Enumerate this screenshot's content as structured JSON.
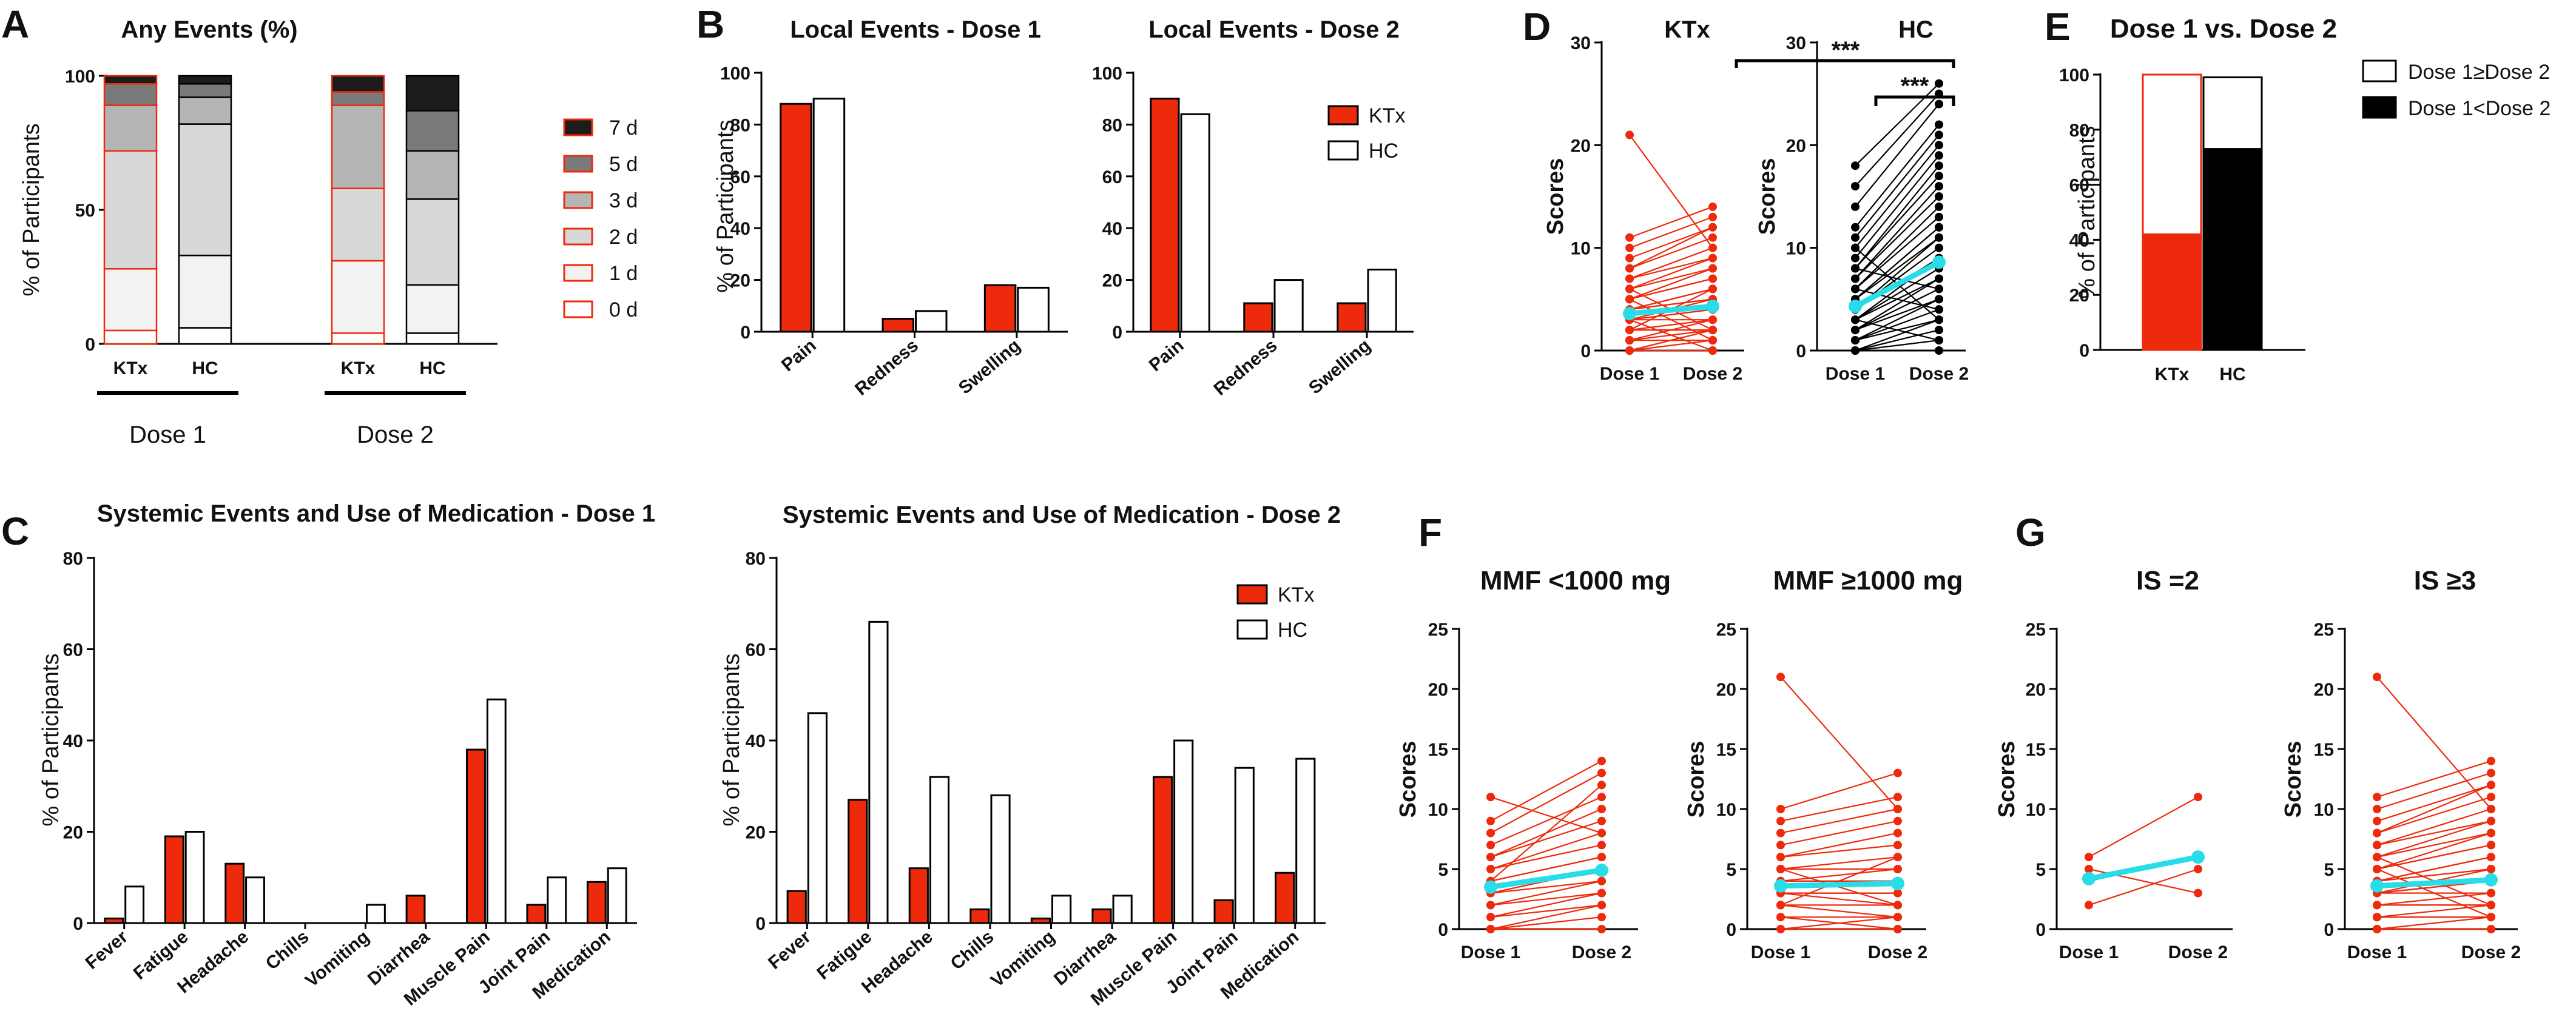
{
  "panel_labels": {
    "A": "A",
    "B": "B",
    "C": "C",
    "D": "D",
    "E": "E",
    "F": "F",
    "G": "G"
  },
  "colors": {
    "ktx": "#ee2a0c",
    "hc": "#ffffff",
    "black": "#000000",
    "cyan": "#29dde8"
  },
  "chart_data": [
    {
      "id": "A",
      "type": "bar",
      "stacked": true,
      "title": "Any Events (%)",
      "ylabel": "% of Participants",
      "ylim": [
        0,
        100
      ],
      "yticks": [
        0,
        50,
        100
      ],
      "categories": [
        "KTx",
        "HC",
        "KTx",
        "HC"
      ],
      "groups": [
        "Dose 1",
        "Dose 2"
      ],
      "legend": [
        "7 d",
        "5 d",
        "3 d",
        "2 d",
        "1 d",
        "0 d"
      ],
      "series_fills": [
        "#1c1c1c",
        "#7a7a7a",
        "#b5b5b5",
        "#d8d8d8",
        "#f2f2f2",
        "#ffffff"
      ],
      "cumulative_tops": [
        [
          5,
          28,
          72,
          89,
          97,
          100
        ],
        [
          6,
          33,
          82,
          92,
          97,
          100
        ],
        [
          4,
          31,
          58,
          89,
          94,
          100
        ],
        [
          4,
          22,
          54,
          72,
          87,
          100
        ]
      ],
      "edge_colors": [
        "#ee2a0c",
        "#000000",
        "#ee2a0c",
        "#000000"
      ]
    },
    {
      "id": "B1",
      "type": "bar",
      "title": "Local Events - Dose 1",
      "ylabel": "% of Participants",
      "ylim": [
        0,
        100
      ],
      "yticks": [
        0,
        20,
        40,
        60,
        80,
        100
      ],
      "categories": [
        "Pain",
        "Redness",
        "Swelling"
      ],
      "series": [
        {
          "name": "KTx",
          "values": [
            88,
            5,
            18
          ]
        },
        {
          "name": "HC",
          "values": [
            90,
            8,
            17
          ]
        }
      ]
    },
    {
      "id": "B2",
      "type": "bar",
      "title": "Local Events - Dose 2",
      "ylabel": "",
      "ylim": [
        0,
        100
      ],
      "yticks": [
        0,
        20,
        40,
        60,
        80,
        100
      ],
      "categories": [
        "Pain",
        "Redness",
        "Swelling"
      ],
      "series": [
        {
          "name": "KTx",
          "values": [
            90,
            11,
            11
          ]
        },
        {
          "name": "HC",
          "values": [
            84,
            20,
            24
          ]
        }
      ],
      "legend": [
        "KTx",
        "HC"
      ]
    },
    {
      "id": "C1",
      "type": "bar",
      "title": "Systemic Events and Use of Medication - Dose 1",
      "ylabel": "% of Participants",
      "ylim": [
        0,
        80
      ],
      "yticks": [
        0,
        20,
        40,
        60,
        80
      ],
      "categories": [
        "Fever",
        "Fatigue",
        "Headache",
        "Chills",
        "Vomiting",
        "Diarrhea",
        "Muscle Pain",
        "Joint Pain",
        "Medication"
      ],
      "series": [
        {
          "name": "KTx",
          "values": [
            1,
            19,
            13,
            0,
            0,
            6,
            38,
            4,
            9
          ]
        },
        {
          "name": "HC",
          "values": [
            8,
            20,
            10,
            0,
            4,
            0,
            49,
            10,
            12
          ]
        }
      ]
    },
    {
      "id": "C2",
      "type": "bar",
      "title": "Systemic Events and Use of Medication - Dose 2",
      "ylabel": "% of Participants",
      "ylim": [
        0,
        80
      ],
      "yticks": [
        0,
        20,
        40,
        60,
        80
      ],
      "categories": [
        "Fever",
        "Fatigue",
        "Headache",
        "Chills",
        "Vomiting",
        "Diarrhea",
        "Muscle Pain",
        "Joint Pain",
        "Medication"
      ],
      "series": [
        {
          "name": "KTx",
          "values": [
            7,
            27,
            12,
            3,
            1,
            3,
            32,
            5,
            11
          ]
        },
        {
          "name": "HC",
          "values": [
            46,
            66,
            32,
            28,
            6,
            6,
            40,
            34,
            36
          ]
        }
      ],
      "legend": [
        "KTx",
        "HC"
      ]
    },
    {
      "id": "D1",
      "type": "scatter",
      "title": "KTx",
      "ylabel": "Scores",
      "ylim": [
        0,
        30
      ],
      "yticks": [
        0,
        10,
        20,
        30
      ],
      "x": [
        "Dose 1",
        "Dose 2"
      ],
      "color": "ktx",
      "pairs": [
        [
          21,
          10
        ],
        [
          11,
          14
        ],
        [
          10,
          13
        ],
        [
          9,
          12
        ],
        [
          8,
          12
        ],
        [
          8,
          11
        ],
        [
          7,
          10
        ],
        [
          7,
          9
        ],
        [
          6,
          9
        ],
        [
          6,
          8
        ],
        [
          5,
          8
        ],
        [
          5,
          7
        ],
        [
          5,
          7
        ],
        [
          4,
          6
        ],
        [
          4,
          6
        ],
        [
          4,
          5
        ],
        [
          4,
          5
        ],
        [
          3,
          5
        ],
        [
          3,
          4
        ],
        [
          3,
          4
        ],
        [
          3,
          3
        ],
        [
          2,
          3
        ],
        [
          2,
          2
        ],
        [
          2,
          2
        ],
        [
          1,
          2
        ],
        [
          1,
          1
        ],
        [
          1,
          1
        ],
        [
          0,
          1
        ],
        [
          0,
          0
        ],
        [
          0,
          0
        ],
        [
          6,
          2
        ],
        [
          5,
          1
        ],
        [
          3,
          0
        ],
        [
          2,
          6
        ],
        [
          1,
          3
        ],
        [
          0,
          2
        ]
      ],
      "mean": [
        3.6,
        4.3
      ]
    },
    {
      "id": "D2",
      "type": "scatter",
      "title": "HC",
      "ylabel": "Scores",
      "ylim": [
        0,
        30
      ],
      "yticks": [
        0,
        10,
        20,
        30
      ],
      "x": [
        "Dose 1",
        "Dose 2"
      ],
      "color": "black",
      "pairs": [
        [
          18,
          26
        ],
        [
          16,
          25
        ],
        [
          14,
          24
        ],
        [
          12,
          22
        ],
        [
          11,
          21
        ],
        [
          10,
          20
        ],
        [
          9,
          19
        ],
        [
          8,
          18
        ],
        [
          8,
          17
        ],
        [
          7,
          16
        ],
        [
          7,
          15
        ],
        [
          6,
          14
        ],
        [
          6,
          13
        ],
        [
          5,
          12
        ],
        [
          5,
          12
        ],
        [
          5,
          11
        ],
        [
          4,
          11
        ],
        [
          4,
          10
        ],
        [
          4,
          9
        ],
        [
          3,
          9
        ],
        [
          3,
          8
        ],
        [
          3,
          7
        ],
        [
          2,
          7
        ],
        [
          2,
          6
        ],
        [
          2,
          5
        ],
        [
          1,
          5
        ],
        [
          1,
          4
        ],
        [
          1,
          3
        ],
        [
          0,
          3
        ],
        [
          0,
          2
        ],
        [
          0,
          1
        ],
        [
          0,
          0
        ],
        [
          6,
          4
        ],
        [
          10,
          3
        ],
        [
          3,
          1
        ],
        [
          8,
          6
        ]
      ],
      "mean": [
        4.3,
        8.6
      ],
      "significance": [
        {
          "label": "***",
          "between": "Dose 1 vs Dose 2"
        },
        {
          "label": "***",
          "between": "KTx vs HC"
        }
      ]
    },
    {
      "id": "E",
      "type": "bar",
      "stacked": true,
      "title": "Dose 1 vs. Dose 2",
      "ylabel": "% of Participants",
      "ylim": [
        0,
        100
      ],
      "yticks": [
        0,
        20,
        40,
        60,
        80,
        100
      ],
      "categories": [
        "KTx",
        "HC"
      ],
      "series": [
        {
          "name": "Dose 1<Dose 2",
          "values": [
            42,
            73
          ]
        },
        {
          "name": "Dose 1≥Dose 2",
          "values": [
            58,
            26
          ]
        }
      ],
      "legend": [
        "Dose 1≥Dose 2",
        "Dose 1<Dose 2"
      ]
    },
    {
      "id": "F1",
      "type": "scatter",
      "title": "MMF <1000 mg",
      "ylabel": "Scores",
      "ylim": [
        0,
        25
      ],
      "yticks": [
        0,
        5,
        10,
        15,
        20,
        25
      ],
      "x": [
        "Dose 1",
        "Dose 2"
      ],
      "color": "ktx",
      "pairs": [
        [
          11,
          8
        ],
        [
          9,
          14
        ],
        [
          8,
          13
        ],
        [
          7,
          11
        ],
        [
          6,
          10
        ],
        [
          6,
          9
        ],
        [
          5,
          8
        ],
        [
          5,
          7
        ],
        [
          4,
          6
        ],
        [
          4,
          6
        ],
        [
          3,
          5
        ],
        [
          3,
          5
        ],
        [
          3,
          4
        ],
        [
          2,
          4
        ],
        [
          2,
          3
        ],
        [
          1,
          3
        ],
        [
          1,
          2
        ],
        [
          0,
          2
        ],
        [
          0,
          1
        ],
        [
          0,
          0
        ],
        [
          4,
          12
        ]
      ],
      "mean": [
        3.5,
        4.9
      ]
    },
    {
      "id": "F2",
      "type": "scatter",
      "title": "MMF ≥1000 mg",
      "ylabel": "Scores",
      "ylim": [
        0,
        25
      ],
      "yticks": [
        0,
        5,
        10,
        15,
        20,
        25
      ],
      "x": [
        "Dose 1",
        "Dose 2"
      ],
      "color": "ktx",
      "pairs": [
        [
          21,
          10
        ],
        [
          10,
          13
        ],
        [
          9,
          11
        ],
        [
          8,
          10
        ],
        [
          7,
          9
        ],
        [
          6,
          8
        ],
        [
          6,
          7
        ],
        [
          5,
          6
        ],
        [
          5,
          5
        ],
        [
          4,
          5
        ],
        [
          4,
          4
        ],
        [
          4,
          4
        ],
        [
          3,
          3
        ],
        [
          3,
          3
        ],
        [
          3,
          2
        ],
        [
          2,
          2
        ],
        [
          2,
          1
        ],
        [
          1,
          1
        ],
        [
          1,
          0
        ],
        [
          0,
          0
        ],
        [
          0,
          1
        ],
        [
          5,
          2
        ],
        [
          2,
          6
        ]
      ],
      "mean": [
        3.6,
        3.8
      ]
    },
    {
      "id": "G1",
      "type": "scatter",
      "title": "IS =2",
      "ylabel": "Scores",
      "ylim": [
        0,
        25
      ],
      "yticks": [
        0,
        5,
        10,
        15,
        20,
        25
      ],
      "x": [
        "Dose 1",
        "Dose 2"
      ],
      "color": "ktx",
      "pairs": [
        [
          6,
          11
        ],
        [
          5,
          3
        ],
        [
          4,
          6
        ],
        [
          2,
          5
        ]
      ],
      "mean": [
        4.2,
        6.0
      ]
    },
    {
      "id": "G2",
      "type": "scatter",
      "title": "IS ≥3",
      "ylabel": "Scores",
      "ylim": [
        0,
        25
      ],
      "yticks": [
        0,
        5,
        10,
        15,
        20,
        25
      ],
      "x": [
        "Dose 1",
        "Dose 2"
      ],
      "color": "ktx",
      "pairs": [
        [
          21,
          10
        ],
        [
          11,
          14
        ],
        [
          10,
          13
        ],
        [
          9,
          12
        ],
        [
          8,
          12
        ],
        [
          8,
          11
        ],
        [
          7,
          10
        ],
        [
          7,
          9
        ],
        [
          6,
          9
        ],
        [
          6,
          8
        ],
        [
          5,
          8
        ],
        [
          5,
          7
        ],
        [
          5,
          7
        ],
        [
          4,
          6
        ],
        [
          4,
          6
        ],
        [
          4,
          5
        ],
        [
          4,
          5
        ],
        [
          3,
          5
        ],
        [
          3,
          4
        ],
        [
          3,
          4
        ],
        [
          3,
          3
        ],
        [
          2,
          3
        ],
        [
          2,
          2
        ],
        [
          2,
          2
        ],
        [
          1,
          2
        ],
        [
          1,
          1
        ],
        [
          1,
          1
        ],
        [
          0,
          1
        ],
        [
          0,
          0
        ],
        [
          0,
          0
        ],
        [
          6,
          2
        ],
        [
          5,
          1
        ]
      ],
      "mean": [
        3.6,
        4.1
      ]
    }
  ]
}
